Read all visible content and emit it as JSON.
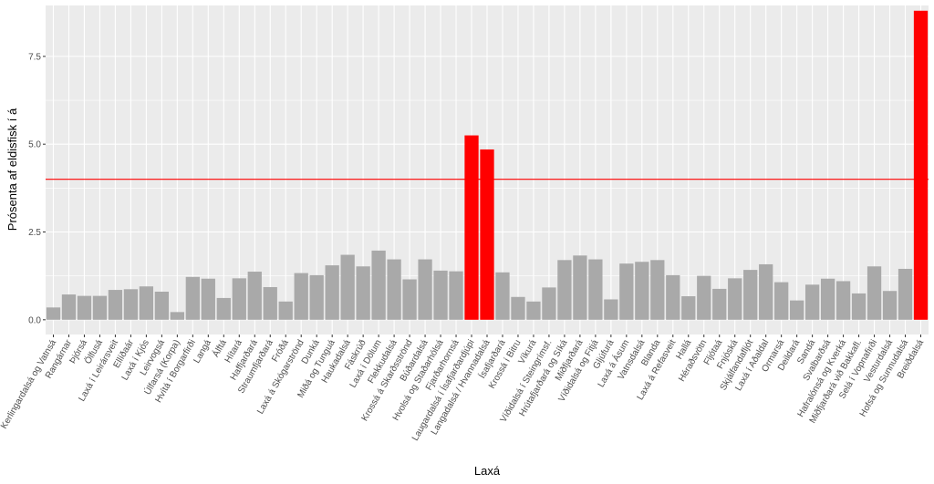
{
  "chart_data": {
    "type": "bar",
    "xlabel": "Laxá",
    "ylabel": "Prósenta af eldisfisk í á",
    "ylim": [
      -0.42,
      8.95
    ],
    "yticks": [
      0.0,
      2.5,
      5.0,
      7.5
    ],
    "ytick_labels": [
      "0.0",
      "2.5",
      "5.0",
      "7.5"
    ],
    "grid": true,
    "legend": "none",
    "threshold": 4,
    "colors": {
      "panel": "#ebebeb",
      "grid": "#ffffff",
      "bar_normal": "#a9a9a9",
      "bar_highlight": "#ff0000",
      "threshold_line": "#ff0000"
    },
    "categories": [
      "Kerlingardalsá og Vatnsá",
      "Rangárnar",
      "Þjórsá",
      "Ölfusá",
      "Laxá í Leirársveit",
      "Ellíðaár",
      "Laxá í Kjós",
      "Leirvogsá",
      "Úlfarsá (Korpa)",
      "Hvítá í Borgarfirði",
      "Langá",
      "Álftá",
      "Hítará",
      "Haffjarðará",
      "Straumfjarðará",
      "Fróðá",
      "Laxá á Skógarströnd",
      "Dunká",
      "Miðá og Tunguá",
      "Haukadalsá",
      "Fáskrúð",
      "Laxá í Dölum",
      "Flekkudalsá",
      "Krossá á Skarðsströnd",
      "Búðardalsá",
      "Hvolsá og Staðarhólsá",
      "Fjarðarhornsá",
      "Laugardalsá í Ísafjarðardjúpi",
      "Langadalsá / Hvannadalsá",
      "Ísafjarðará",
      "Krossá í Bitru",
      "Víkurá",
      "Víðidalsá í Steingrímsf.",
      "Hrútafjarðará og Síká",
      "Miðfjarðará",
      "Víðidalsá og Fitjá",
      "Gljúfurá",
      "Laxá á Ásum",
      "Vatnsdalsá",
      "Blanda",
      "Laxá á Refasveit",
      "Hallá",
      "Héraðsvötn",
      "Fljótaá",
      "Fnjóská",
      "Skjálfandafljót",
      "Laxá í Aðaldal",
      "Ormarsá",
      "Deildará",
      "Sandá",
      "Svalbarðsá",
      "Hafralónsá og Kverká",
      "Miðfjarðará við Bakkafl.",
      "Selá í Vopnafirði",
      "Vesturdalsá",
      "Hofsá og Sunnudalsá",
      "Breiðdalsá"
    ],
    "values": [
      0.35,
      0.72,
      0.68,
      0.68,
      0.85,
      0.87,
      0.95,
      0.8,
      0.22,
      1.22,
      1.17,
      0.62,
      1.18,
      1.37,
      0.93,
      0.52,
      1.33,
      1.27,
      1.55,
      1.85,
      1.52,
      1.97,
      1.72,
      1.15,
      1.72,
      1.4,
      1.38,
      5.25,
      4.85,
      1.35,
      0.65,
      0.52,
      0.92,
      1.7,
      1.83,
      1.72,
      0.58,
      1.6,
      1.65,
      1.7,
      1.27,
      0.67,
      1.25,
      0.88,
      1.18,
      1.42,
      1.58,
      1.07,
      0.55,
      1.0,
      1.17,
      1.1,
      0.75,
      1.52,
      0.82,
      1.45,
      8.8
    ]
  }
}
